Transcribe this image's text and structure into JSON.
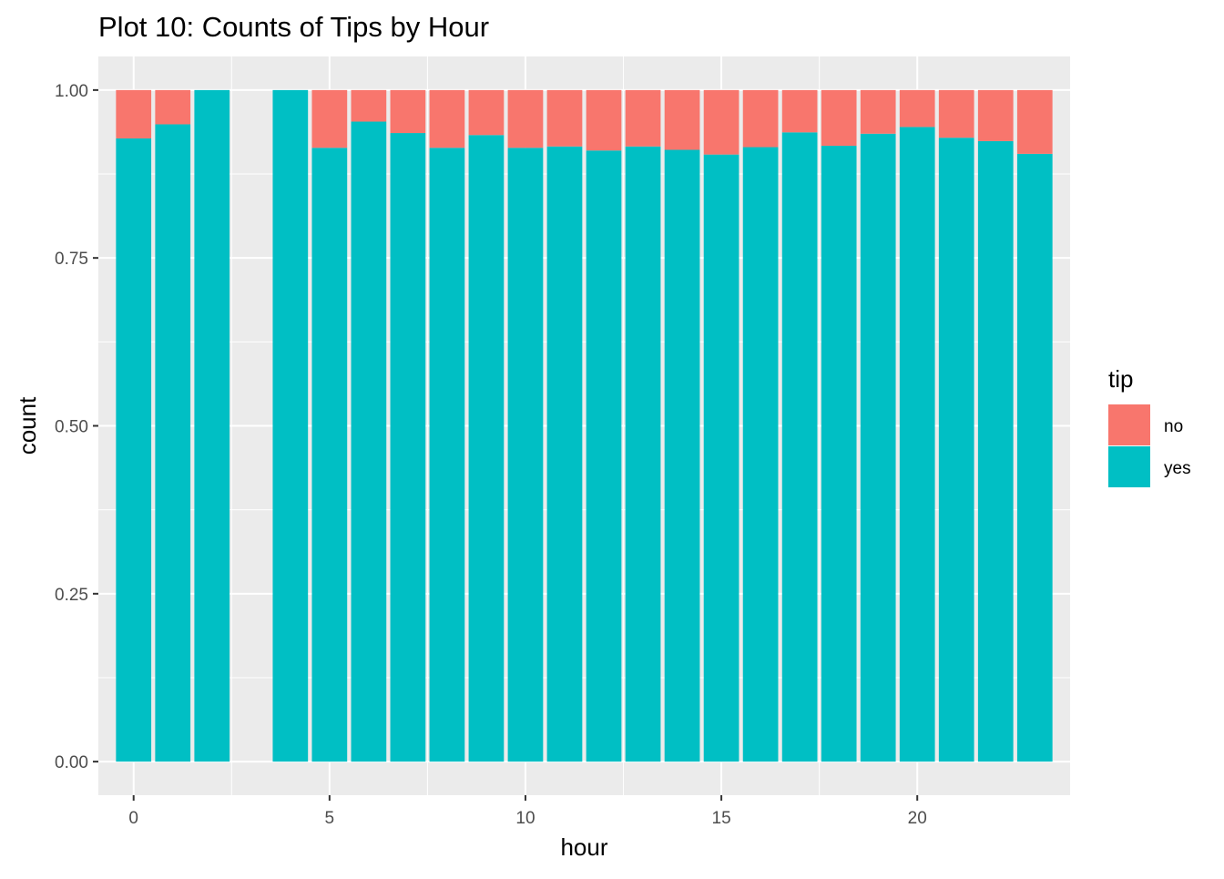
{
  "chart_data": {
    "type": "bar",
    "stacked": true,
    "position": "fill",
    "title": "Plot 10: Counts of Tips by Hour",
    "xlabel": "hour",
    "ylabel": "count",
    "xlim": [
      -0.9,
      23.9
    ],
    "ylim": [
      -0.05,
      1.05
    ],
    "x_ticks": [
      0,
      5,
      10,
      15,
      20
    ],
    "x_tick_labels": [
      "0",
      "5",
      "10",
      "15",
      "20"
    ],
    "y_ticks": [
      0,
      0.25,
      0.5,
      0.75,
      1.0
    ],
    "y_tick_labels": [
      "0.00",
      "0.25",
      "0.50",
      "0.75",
      "1.00"
    ],
    "grid": true,
    "legend": {
      "title": "tip",
      "position": "right",
      "entries": [
        {
          "key": "no",
          "label": "no",
          "color": "#F8766D"
        },
        {
          "key": "yes",
          "label": "yes",
          "color": "#00BFC4"
        }
      ]
    },
    "x": [
      0,
      1,
      2,
      4,
      5,
      6,
      7,
      8,
      9,
      10,
      11,
      12,
      13,
      14,
      15,
      16,
      17,
      18,
      19,
      20,
      21,
      22,
      23
    ],
    "series": [
      {
        "name": "yes",
        "color": "#00BFC4",
        "values": [
          0.928,
          0.949,
          1.0,
          1.0,
          0.914,
          0.953,
          0.936,
          0.914,
          0.933,
          0.914,
          0.916,
          0.91,
          0.916,
          0.911,
          0.904,
          0.915,
          0.937,
          0.917,
          0.935,
          0.945,
          0.929,
          0.924,
          0.905
        ]
      },
      {
        "name": "no",
        "color": "#F8766D",
        "values": [
          0.072,
          0.051,
          0.0,
          0.0,
          0.086,
          0.047,
          0.064,
          0.086,
          0.067,
          0.086,
          0.084,
          0.09,
          0.084,
          0.089,
          0.096,
          0.085,
          0.063,
          0.083,
          0.065,
          0.055,
          0.071,
          0.076,
          0.095
        ]
      }
    ]
  },
  "style": {
    "panel_bg": "#EBEBEB",
    "grid_major": "#FFFFFF",
    "tick_color": "#333333",
    "tick_label_color": "#4D4D4D"
  }
}
